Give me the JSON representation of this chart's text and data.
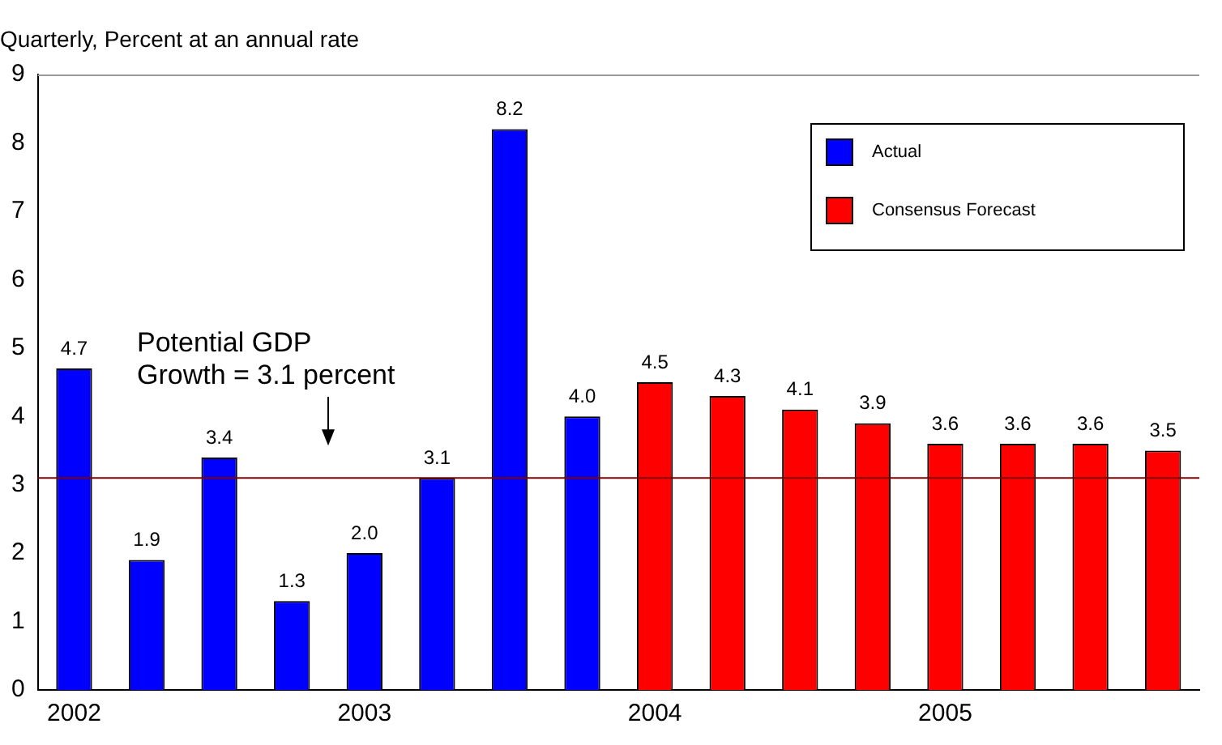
{
  "chart_data": {
    "type": "bar",
    "ylabel": "Quarterly, Percent at an annual rate",
    "categories": [
      "2002",
      null,
      null,
      null,
      "2003",
      null,
      null,
      null,
      "2004",
      null,
      null,
      null,
      "2005",
      null,
      null,
      null
    ],
    "series": [
      {
        "name": "Actual",
        "color": "#0000ff",
        "values": [
          4.7,
          1.9,
          3.4,
          1.3,
          2.0,
          3.1,
          8.2,
          4.0,
          null,
          null,
          null,
          null,
          null,
          null,
          null,
          null
        ],
        "value_labels": [
          "4.7",
          "1.9",
          "3.4",
          "1.3",
          "2.0",
          "3.1",
          "8.2",
          "4.0",
          null,
          null,
          null,
          null,
          null,
          null,
          null,
          null
        ]
      },
      {
        "name": "Consensus Forecast",
        "color": "#ff0000",
        "values": [
          null,
          null,
          null,
          null,
          null,
          null,
          null,
          null,
          4.5,
          4.3,
          4.1,
          3.9,
          3.6,
          3.6,
          3.6,
          3.5
        ],
        "value_labels": [
          null,
          null,
          null,
          null,
          null,
          null,
          null,
          null,
          "4.5",
          "4.3",
          "4.1",
          "3.9",
          "3.6",
          "3.6",
          "3.6",
          "3.5"
        ]
      }
    ],
    "ylim": [
      0,
      9
    ],
    "yticks": [
      0,
      1,
      2,
      3,
      4,
      5,
      6,
      7,
      8,
      9
    ],
    "grid": false,
    "legend": "top right",
    "annotations": [
      "Potential GDP\nGrowth = 3.1 percent"
    ],
    "ref_lines": [
      {
        "axis": "y",
        "value": 3.1,
        "color": "#800000"
      }
    ]
  }
}
